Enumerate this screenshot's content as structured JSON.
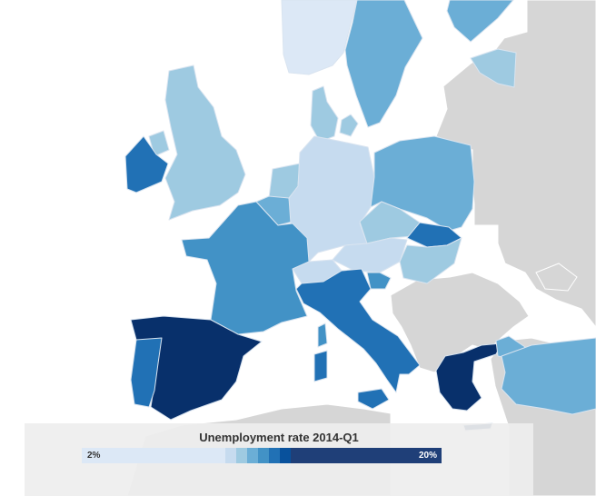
{
  "map": {
    "colors": {
      "water": "#ffffff",
      "no_data_land": "#d6d6d6",
      "border": "#d9e4f0"
    },
    "scale": [
      "#dce8f6",
      "#c6dbef",
      "#9ecae1",
      "#6baed6",
      "#4292c6",
      "#2171b5",
      "#08519c",
      "#08306b"
    ]
  },
  "legend": {
    "title": "Unemployment rate 2014-Q1",
    "min_label": "2%",
    "max_label": "20%",
    "segments": [
      {
        "color": "#dce8f6",
        "share": 40
      },
      {
        "color": "#c6dbef",
        "share": 3
      },
      {
        "color": "#9ecae1",
        "share": 3
      },
      {
        "color": "#6baed6",
        "share": 3
      },
      {
        "color": "#4292c6",
        "share": 3
      },
      {
        "color": "#2171b5",
        "share": 3
      },
      {
        "color": "#08519c",
        "share": 3
      },
      {
        "color": "#1f3f78",
        "share": 42
      }
    ]
  }
}
